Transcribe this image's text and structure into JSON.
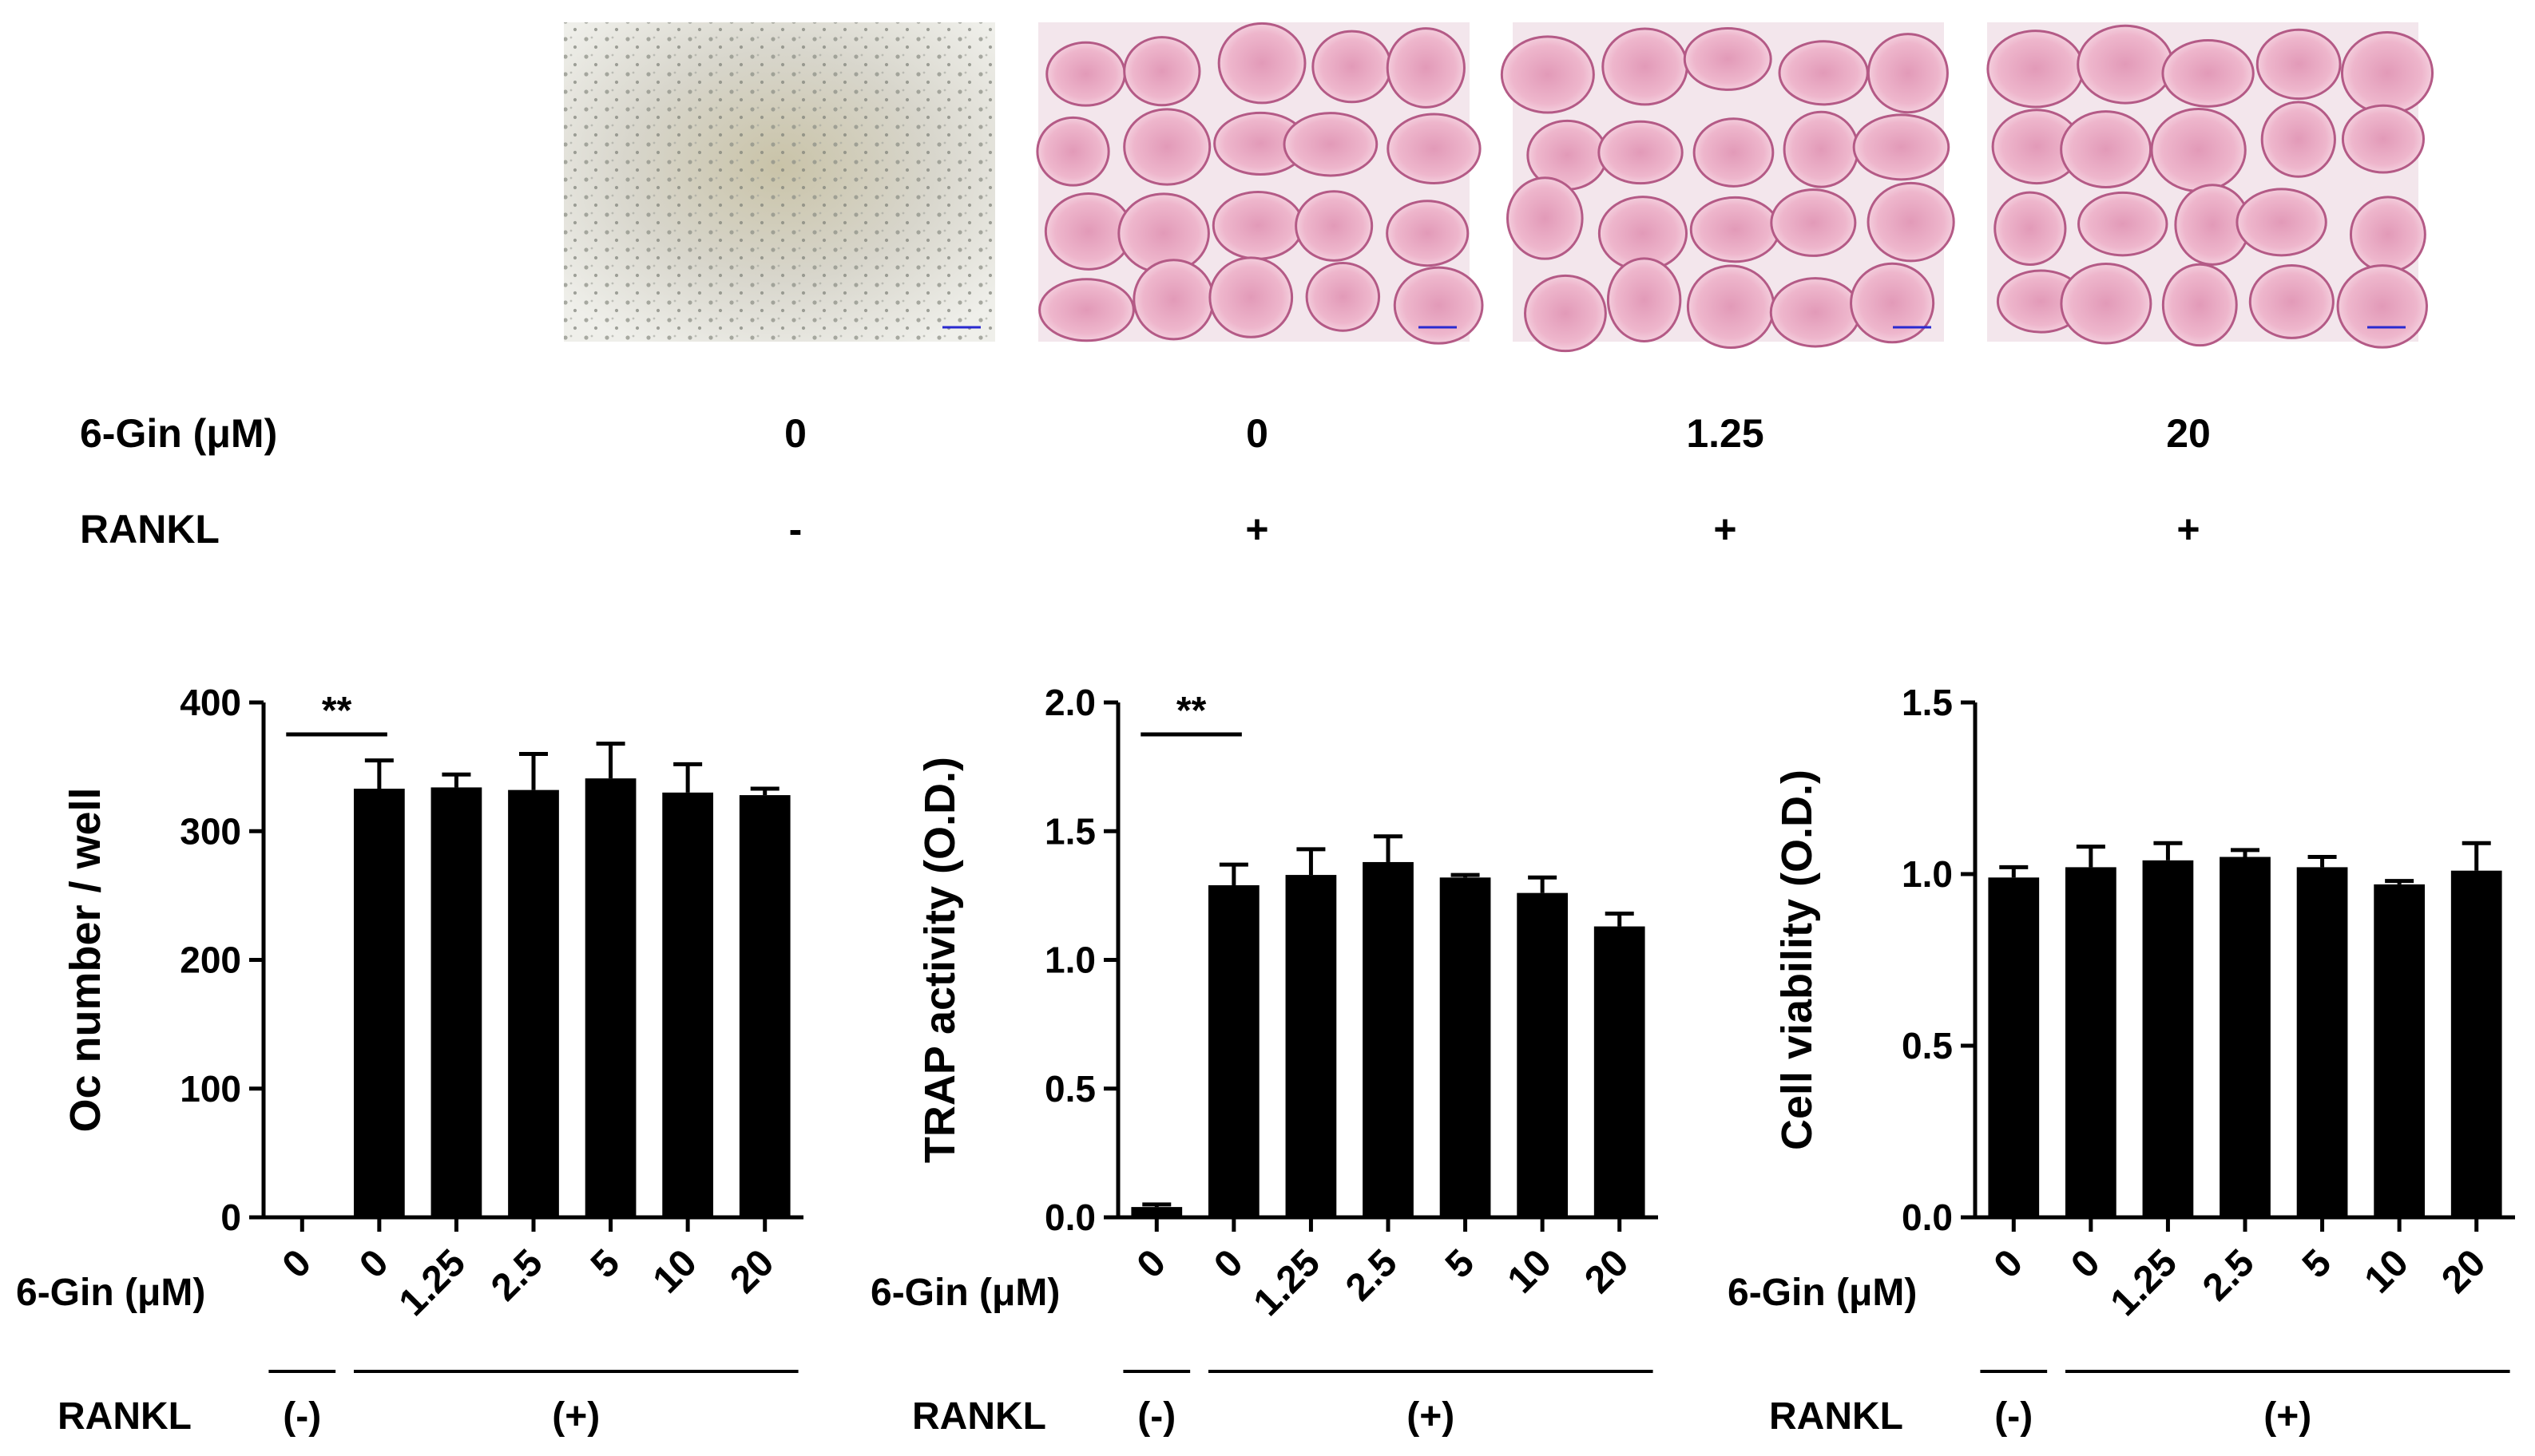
{
  "micrographs": {
    "row_labels": {
      "gin": "6-Gin (μM)",
      "rankl": "RANKL"
    },
    "panels": [
      {
        "gin": "0",
        "rankl": "-",
        "stain": "unstained"
      },
      {
        "gin": "0",
        "rankl": "+",
        "stain": "trap"
      },
      {
        "gin": "1.25",
        "rankl": "+",
        "stain": "trap"
      },
      {
        "gin": "20",
        "rankl": "+",
        "stain": "trap"
      }
    ]
  },
  "chart_data": [
    {
      "type": "bar",
      "ylabel": "Oc number / well",
      "ylim": [
        0,
        400
      ],
      "yticks": [
        "0",
        "100",
        "200",
        "300",
        "400"
      ],
      "categories": [
        "0",
        "0",
        "1.25",
        "2.5",
        "5",
        "10",
        "20"
      ],
      "values": [
        0,
        333,
        334,
        332,
        341,
        330,
        328
      ],
      "errors": [
        0,
        22,
        10,
        28,
        27,
        22,
        5
      ],
      "significance": "**",
      "x_group_label": "6-Gin (μM)",
      "rankl_label": "RANKL",
      "rankl_groups": [
        "(-)",
        "(+)"
      ]
    },
    {
      "type": "bar",
      "ylabel": "TRAP activity (O.D.)",
      "ylim": [
        0,
        2.0
      ],
      "yticks": [
        "0.0",
        "0.5",
        "1.0",
        "1.5",
        "2.0"
      ],
      "categories": [
        "0",
        "0",
        "1.25",
        "2.5",
        "5",
        "10",
        "20"
      ],
      "values": [
        0.04,
        1.29,
        1.33,
        1.38,
        1.32,
        1.26,
        1.13
      ],
      "errors": [
        0.01,
        0.08,
        0.1,
        0.1,
        0.01,
        0.06,
        0.05
      ],
      "significance": "**",
      "x_group_label": "6-Gin (μM)",
      "rankl_label": "RANKL",
      "rankl_groups": [
        "(-)",
        "(+)"
      ]
    },
    {
      "type": "bar",
      "ylabel": "Cell viability (O.D.)",
      "ylim": [
        0,
        1.5
      ],
      "yticks": [
        "0.0",
        "0.5",
        "1.0",
        "1.5"
      ],
      "categories": [
        "0",
        "0",
        "1.25",
        "2.5",
        "5",
        "10",
        "20"
      ],
      "values": [
        0.99,
        1.02,
        1.04,
        1.05,
        1.02,
        0.97,
        1.01
      ],
      "errors": [
        0.03,
        0.06,
        0.05,
        0.02,
        0.03,
        0.01,
        0.08
      ],
      "significance": "",
      "x_group_label": "6-Gin (μM)",
      "rankl_label": "RANKL",
      "rankl_groups": [
        "(-)",
        "(+)"
      ]
    }
  ]
}
